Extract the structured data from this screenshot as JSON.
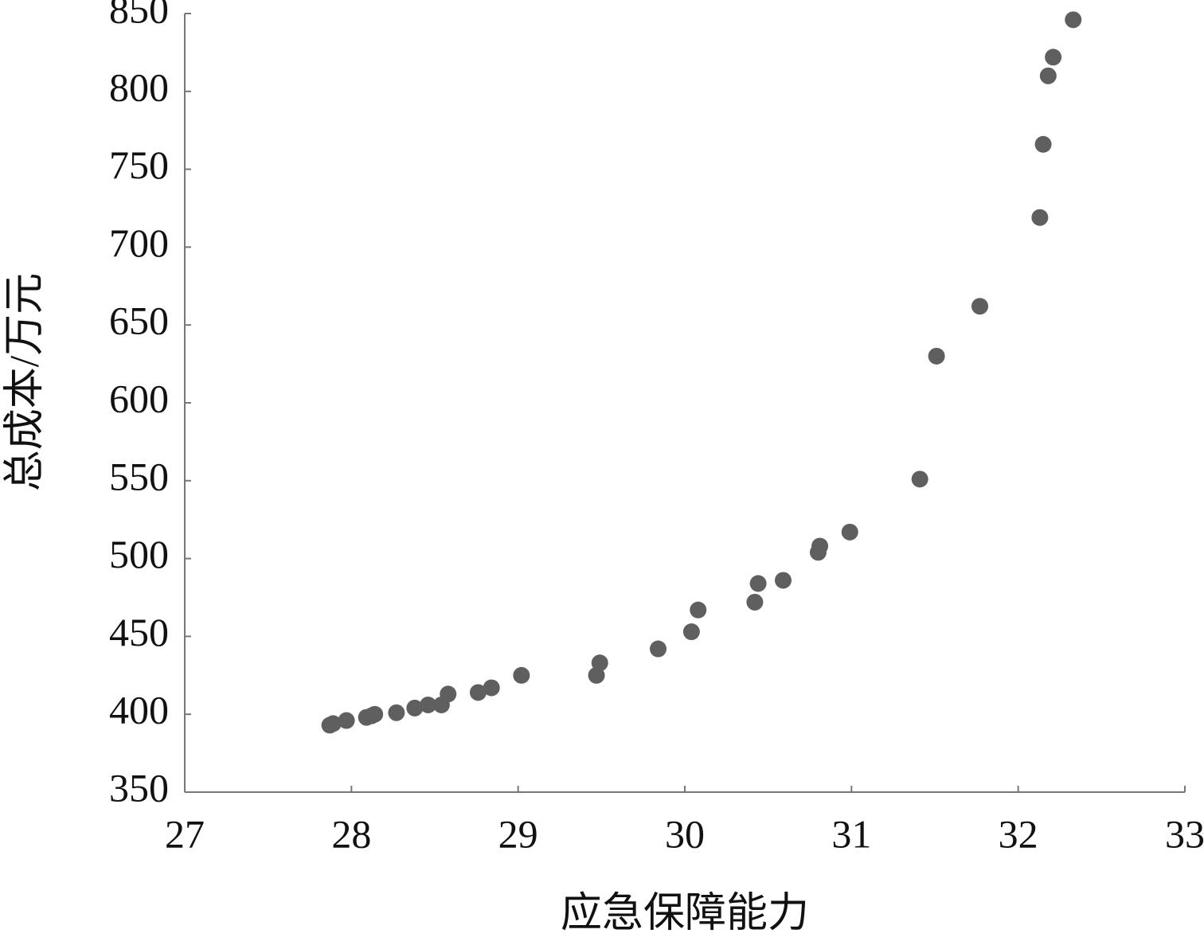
{
  "chart_data": {
    "type": "scatter",
    "x_label": "应急保障能力",
    "y_label": "总成本/万元",
    "color": "#5f5f5f",
    "x": [
      27.87,
      27.89,
      27.97,
      28.09,
      28.12,
      28.14,
      28.27,
      28.38,
      28.46,
      28.54,
      28.58,
      28.76,
      28.84,
      29.02,
      29.47,
      29.49,
      29.84,
      30.04,
      30.08,
      30.42,
      30.44,
      30.59,
      30.8,
      30.81,
      30.99,
      31.41,
      31.51,
      31.77,
      32.13,
      32.15,
      32.18,
      32.21,
      32.33
    ],
    "values": [
      393,
      394,
      396,
      398,
      399,
      400,
      401,
      404,
      406,
      406,
      413,
      414,
      417,
      425,
      425,
      433,
      442,
      453,
      467,
      472,
      484,
      486,
      504,
      508,
      517,
      551,
      630,
      662,
      719,
      766,
      810,
      822,
      846
    ],
    "xlim": [
      27,
      33
    ],
    "xticks": [
      27,
      28,
      29,
      30,
      31,
      32,
      33
    ],
    "ylim": [
      350,
      850
    ],
    "yticks": [
      350,
      400,
      450,
      500,
      550,
      600,
      650,
      700,
      750,
      800,
      850
    ],
    "grid": false
  }
}
